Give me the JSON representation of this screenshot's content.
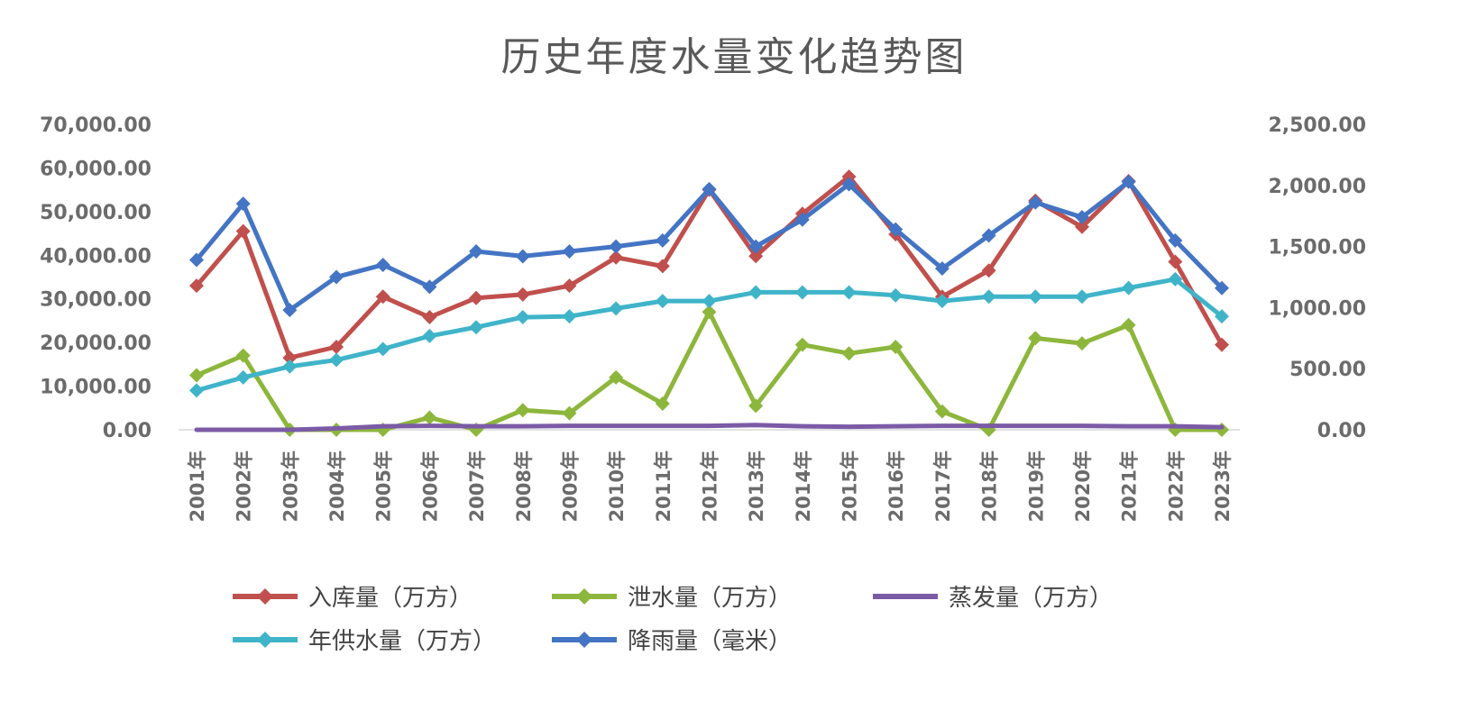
{
  "chart_data": {
    "type": "line",
    "title": "历史年度水量变化趋势图",
    "categories": [
      "2001年",
      "2002年",
      "2003年",
      "2004年",
      "2005年",
      "2006年",
      "2007年",
      "2008年",
      "2009年",
      "2010年",
      "2011年",
      "2012年",
      "2013年",
      "2014年",
      "2015年",
      "2016年",
      "2017年",
      "2018年",
      "2019年",
      "2020年",
      "2021年",
      "2022年",
      "2023年"
    ],
    "y_left": {
      "range": [
        0,
        70000
      ],
      "ticks": [
        "0.00",
        "10,000.00",
        "20,000.00",
        "30,000.00",
        "40,000.00",
        "50,000.00",
        "60,000.00",
        "70,000.00"
      ]
    },
    "y_right": {
      "range": [
        0,
        2500
      ],
      "ticks": [
        "0.00",
        "500.00",
        "1,000.00",
        "1,500.00",
        "2,000.00",
        "2,500.00"
      ]
    },
    "grid": false,
    "legend_position": "bottom",
    "series": [
      {
        "name": "入库量（万方）",
        "axis": "left",
        "color": "#c0504d",
        "marker": "diamond",
        "values": [
          33000,
          45500,
          16500,
          19000,
          30500,
          25800,
          30200,
          31000,
          33000,
          39500,
          37500,
          55000,
          39800,
          49500,
          58000,
          44800,
          30500,
          36500,
          52500,
          46500,
          57000,
          38500,
          19500
        ]
      },
      {
        "name": "泄水量（万方）",
        "axis": "left",
        "color": "#8db63c",
        "marker": "diamond",
        "values": [
          12500,
          17000,
          0,
          0,
          0,
          2800,
          0,
          4500,
          3800,
          12000,
          6000,
          27000,
          5500,
          19500,
          17500,
          19000,
          4200,
          0,
          21000,
          19800,
          24000,
          0,
          0
        ]
      },
      {
        "name": "蒸发量（万方）",
        "axis": "left",
        "color": "#7b5aa6",
        "marker": "none",
        "values": [
          0,
          0,
          0,
          300,
          800,
          900,
          800,
          800,
          900,
          900,
          900,
          900,
          1100,
          800,
          700,
          800,
          900,
          900,
          900,
          900,
          800,
          800,
          600
        ]
      },
      {
        "name": "年供水量（万方）",
        "axis": "left",
        "color": "#3fb4c9",
        "marker": "diamond",
        "values": [
          9000,
          12000,
          14500,
          16000,
          18500,
          21500,
          23500,
          25800,
          26000,
          27800,
          29500,
          29500,
          31500,
          31500,
          31500,
          30800,
          29500,
          30500,
          30500,
          30500,
          32500,
          34500,
          26000
        ]
      },
      {
        "name": "降雨量（毫米）",
        "axis": "right",
        "color": "#4474c4",
        "marker": "diamond",
        "values": [
          1390,
          1850,
          980,
          1250,
          1350,
          1170,
          1460,
          1420,
          1460,
          1500,
          1550,
          1970,
          1500,
          1720,
          2010,
          1640,
          1320,
          1590,
          1860,
          1740,
          2030,
          1550,
          1160
        ]
      }
    ]
  }
}
